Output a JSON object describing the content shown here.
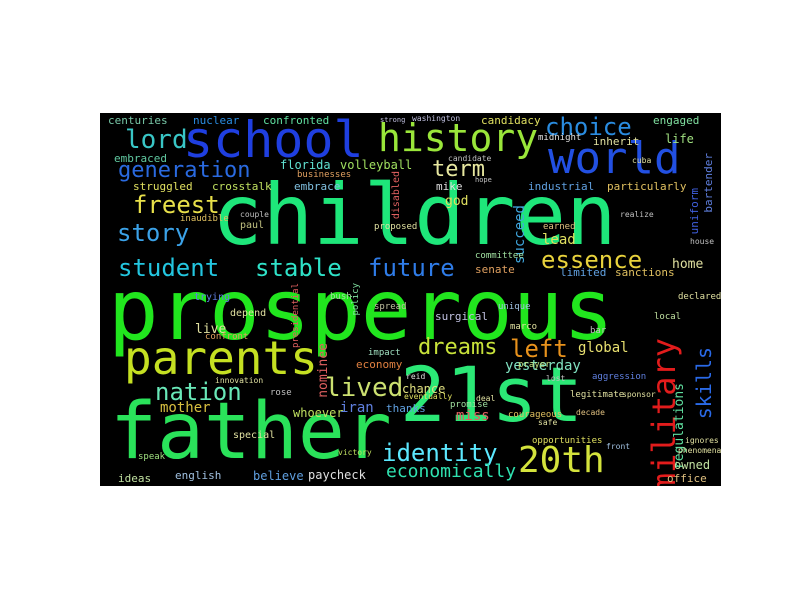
{
  "canvas": {
    "background": "#000000",
    "page_background": "#ffffff"
  },
  "words": [
    {
      "text": "prosperous",
      "color": "#21e61e"
    },
    {
      "text": "children",
      "color": "#1ee67a"
    },
    {
      "text": "father",
      "color": "#2ae25a"
    },
    {
      "text": "21st",
      "color": "#2be876"
    },
    {
      "text": "school",
      "color": "#1f3fe0"
    },
    {
      "text": "world",
      "color": "#2250e2"
    },
    {
      "text": "parents",
      "color": "#c5e022"
    },
    {
      "text": "history",
      "color": "#9ae63a"
    },
    {
      "text": "20th",
      "color": "#d4e33c"
    },
    {
      "text": "military",
      "color": "#e21c1c"
    },
    {
      "text": "student",
      "color": "#23c6e0"
    },
    {
      "text": "stable",
      "color": "#2fe2c8"
    },
    {
      "text": "future",
      "color": "#2f7ce8"
    },
    {
      "text": "identity",
      "color": "#5ce8ff"
    },
    {
      "text": "generation",
      "color": "#2a6ae0"
    },
    {
      "text": "choice",
      "color": "#2a8ce0"
    },
    {
      "text": "lord",
      "color": "#39c6c6"
    },
    {
      "text": "freest",
      "color": "#e8e04a"
    },
    {
      "text": "story",
      "color": "#3ba2e8"
    },
    {
      "text": "nation",
      "color": "#69e8b8"
    },
    {
      "text": "lived",
      "color": "#cce070"
    },
    {
      "text": "essence",
      "color": "#e8d23c"
    },
    {
      "text": "left",
      "color": "#e8921c"
    },
    {
      "text": "dreams",
      "color": "#c8e23a"
    },
    {
      "text": "term",
      "color": "#e8e8a0"
    },
    {
      "text": "skills",
      "color": "#2a6ae8"
    },
    {
      "text": "economically",
      "color": "#2fe2b0"
    },
    {
      "text": "mother",
      "color": "#d8c040"
    },
    {
      "text": "global",
      "color": "#e8e070"
    },
    {
      "text": "succeed",
      "color": "#40a8e0"
    },
    {
      "text": "centuries",
      "color": "#78c8a8"
    },
    {
      "text": "nuclear",
      "color": "#2a8ce0"
    },
    {
      "text": "confronted",
      "color": "#60e0a0"
    },
    {
      "text": "candidacy",
      "color": "#e0e060"
    },
    {
      "text": "engaged",
      "color": "#80e0a0"
    },
    {
      "text": "embraced",
      "color": "#60c8a0"
    },
    {
      "text": "florida",
      "color": "#60e0d0"
    },
    {
      "text": "volleyball",
      "color": "#a0e060"
    },
    {
      "text": "midnight",
      "color": "#e0e0e0"
    },
    {
      "text": "inherit",
      "color": "#e0e0a0"
    },
    {
      "text": "life",
      "color": "#a0e080"
    },
    {
      "text": "bartender",
      "color": "#6080e0"
    },
    {
      "text": "struggled",
      "color": "#e0e060"
    },
    {
      "text": "crosstalk",
      "color": "#c0e060"
    },
    {
      "text": "embrace",
      "color": "#80c0e0"
    },
    {
      "text": "mike",
      "color": "#e0e0e0"
    },
    {
      "text": "industrial",
      "color": "#60a0e0"
    },
    {
      "text": "particularly",
      "color": "#e0c060"
    },
    {
      "text": "god",
      "color": "#e0e060"
    },
    {
      "text": "uniform",
      "color": "#4060e0"
    },
    {
      "text": "paul",
      "color": "#c0c080"
    },
    {
      "text": "lead",
      "color": "#e0e060"
    },
    {
      "text": "earned",
      "color": "#e0c080"
    },
    {
      "text": "inaudible",
      "color": "#e0c060"
    },
    {
      "text": "committee",
      "color": "#a0e0a0"
    },
    {
      "text": "home",
      "color": "#e0e0a0"
    },
    {
      "text": "senate",
      "color": "#e0a060"
    },
    {
      "text": "limited",
      "color": "#60a0e0"
    },
    {
      "text": "sanctions",
      "color": "#e0c060"
    },
    {
      "text": "surgical",
      "color": "#c0c0e0"
    },
    {
      "text": "nominee",
      "color": "#e06060"
    },
    {
      "text": "economy",
      "color": "#e08040"
    },
    {
      "text": "impact",
      "color": "#a0e0c0"
    },
    {
      "text": "yesterday",
      "color": "#80e0c0"
    },
    {
      "text": "live",
      "color": "#e0e0a0"
    },
    {
      "text": "chance",
      "color": "#e0e080"
    },
    {
      "text": "whoever",
      "color": "#c0e060"
    },
    {
      "text": "iran",
      "color": "#6080e0"
    },
    {
      "text": "thanks",
      "color": "#60a0e0"
    },
    {
      "text": "miss",
      "color": "#e06060"
    },
    {
      "text": "promise",
      "color": "#a0e0a0"
    },
    {
      "text": "regulations",
      "color": "#60e0a0"
    },
    {
      "text": "owned",
      "color": "#c0e0a0"
    },
    {
      "text": "office",
      "color": "#e0c080"
    },
    {
      "text": "ideas",
      "color": "#c0e0a0"
    },
    {
      "text": "english",
      "color": "#a0c0e0"
    },
    {
      "text": "believe",
      "color": "#60a0e0"
    },
    {
      "text": "paycheck",
      "color": "#e0e0e0"
    },
    {
      "text": "opportunities",
      "color": "#e0e060"
    },
    {
      "text": "legitimate",
      "color": "#e0e0a0"
    },
    {
      "text": "courageous",
      "color": "#e0c060"
    },
    {
      "text": "prayer",
      "color": "#c0e080"
    },
    {
      "text": "trying",
      "color": "#6080e0"
    },
    {
      "text": "depend",
      "color": "#e0e0a0"
    },
    {
      "text": "confront",
      "color": "#e0a060"
    },
    {
      "text": "special",
      "color": "#e0e0a0"
    },
    {
      "text": "speak",
      "color": "#a0e080"
    },
    {
      "text": "rose",
      "color": "#c0c0c0"
    },
    {
      "text": "innovation",
      "color": "#e0e0a0"
    },
    {
      "text": "eventually",
      "color": "#e0e060"
    },
    {
      "text": "victory",
      "color": "#c0e060"
    },
    {
      "text": "presidential",
      "color": "#e06060"
    },
    {
      "text": "bush",
      "color": "#a0e0a0"
    },
    {
      "text": "policy",
      "color": "#80e0a0"
    },
    {
      "text": "unique",
      "color": "#a0c0e0"
    },
    {
      "text": "marco",
      "color": "#e0e0a0"
    },
    {
      "text": "bar",
      "color": "#c0c0c0"
    },
    {
      "text": "local",
      "color": "#c0e0a0"
    },
    {
      "text": "declared",
      "color": "#e0e0a0"
    },
    {
      "text": "aggression",
      "color": "#6080e0"
    },
    {
      "text": "sponsor",
      "color": "#e0e0a0"
    },
    {
      "text": "decade",
      "color": "#e0c080"
    },
    {
      "text": "front",
      "color": "#a0c0e0"
    },
    {
      "text": "phenomenal",
      "color": "#e0e0a0"
    },
    {
      "text": "ignores",
      "color": "#e0e0a0"
    },
    {
      "text": "cuba",
      "color": "#e0e0a0"
    },
    {
      "text": "businesses",
      "color": "#e0a060"
    },
    {
      "text": "disabled",
      "color": "#e06060"
    },
    {
      "text": "proposed",
      "color": "#e0e0a0"
    },
    {
      "text": "spread",
      "color": "#c0c0a0"
    },
    {
      "text": "lost",
      "color": "#c0c0c0"
    },
    {
      "text": "safe",
      "color": "#e0e0a0"
    },
    {
      "text": "reid",
      "color": "#e0e0e0"
    },
    {
      "text": "deal",
      "color": "#e0e0a0"
    },
    {
      "text": "candidate",
      "color": "#c0c0c0"
    },
    {
      "text": "washington",
      "color": "#c0c0e0"
    },
    {
      "text": "house",
      "color": "#c0c0c0"
    },
    {
      "text": "realize",
      "color": "#c0c0c0"
    },
    {
      "text": "strong",
      "color": "#c0c0e0"
    },
    {
      "text": "hope",
      "color": "#c0c0c0"
    },
    {
      "text": "couple",
      "color": "#c0c0c0"
    },
    {
      "text": "english",
      "color": "#a0c0e0"
    }
  ]
}
